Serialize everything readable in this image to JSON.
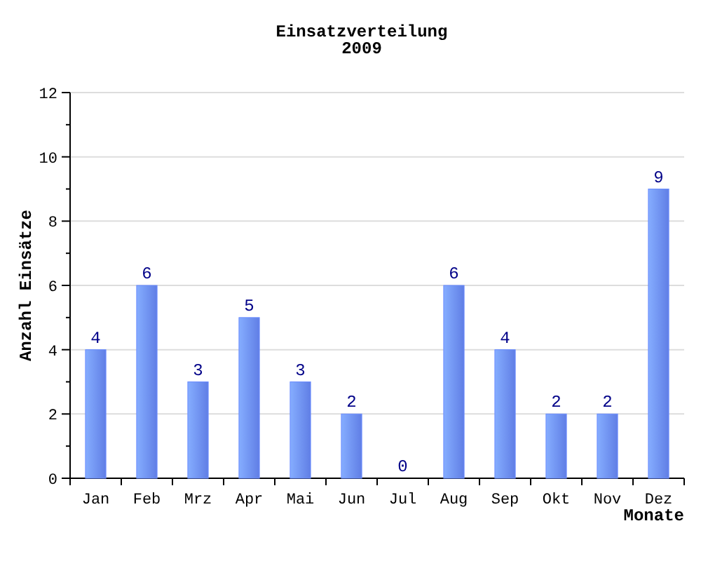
{
  "chart_data": {
    "type": "bar",
    "title": "Einsatzverteilung",
    "subtitle": "2009",
    "xlabel": "Monate",
    "ylabel": "Anzahl Einsätze",
    "categories": [
      "Jan",
      "Feb",
      "Mrz",
      "Apr",
      "Mai",
      "Jun",
      "Jul",
      "Aug",
      "Sep",
      "Okt",
      "Nov",
      "Dez"
    ],
    "values": [
      4,
      6,
      3,
      5,
      3,
      2,
      0,
      6,
      4,
      2,
      2,
      9
    ],
    "color": "#6b8cff",
    "ylim": [
      0,
      12
    ],
    "yticks": [
      0,
      {
        "value": 1,
        "label": null
      },
      2,
      {
        "value": 3,
        "label": null
      },
      4,
      {
        "value": 5,
        "label": null
      },
      6,
      {
        "value": 7,
        "label": null
      },
      8,
      {
        "value": 9,
        "label": null
      },
      10,
      {
        "value": 11,
        "label": null
      },
      12
    ],
    "grid": "y",
    "data_labels": true
  }
}
